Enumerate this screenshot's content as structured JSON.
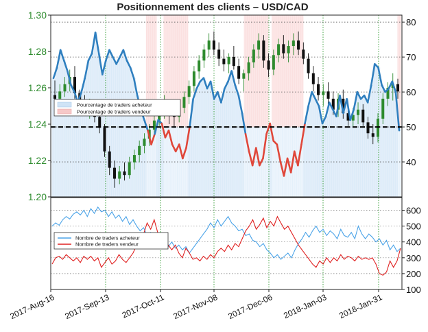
{
  "chart_data": {
    "type": "line",
    "title": "Positionnement des clients – USD/CAD",
    "colors": {
      "price_axis": "#2e8b2e",
      "long_line": "#2f7fbf",
      "short_line": "#e0473a",
      "long_fill": "#d6e8f7",
      "short_fill": "#fbdede",
      "up_candle": "#2e8b2e",
      "down_candle": "#111111",
      "long_count": "#4aa3e8",
      "short_count": "#e02020",
      "grid_vertical": "#2e9a2e"
    },
    "x_tick_labels": [
      "2017-Aug-16",
      "2017-Sep-13",
      "2017-Oct-11",
      "2017-Nov-08",
      "2017-Dec-06",
      "2018-Jan-03",
      "2018-Jan-31"
    ],
    "panels": [
      {
        "name": "positioning",
        "price_axis": {
          "side": "left",
          "range": [
            1.2,
            1.3
          ],
          "ticks": [
            "1.30",
            "1.28",
            "1.26",
            "1.24",
            "1.22",
            "1.20"
          ]
        },
        "pct_axis": {
          "side": "right",
          "range": [
            30,
            82
          ],
          "ticks": [
            "80",
            "70",
            "60",
            "50",
            "40"
          ]
        },
        "reference_line": 50,
        "legend": {
          "placement": "left-middle",
          "entries": [
            "Pourcentage de traders acheteur",
            "Pourcentage de traders vendeur"
          ]
        },
        "price_ohlc": [
          [
            1.256,
            1.264,
            1.249,
            1.254
          ],
          [
            1.254,
            1.262,
            1.25,
            1.258
          ],
          [
            1.258,
            1.266,
            1.255,
            1.262
          ],
          [
            1.262,
            1.27,
            1.258,
            1.266
          ],
          [
            1.266,
            1.272,
            1.254,
            1.257
          ],
          [
            1.257,
            1.259,
            1.248,
            1.251
          ],
          [
            1.251,
            1.256,
            1.245,
            1.249
          ],
          [
            1.249,
            1.254,
            1.243,
            1.25
          ],
          [
            1.25,
            1.253,
            1.241,
            1.244
          ],
          [
            1.244,
            1.249,
            1.235,
            1.238
          ],
          [
            1.238,
            1.24,
            1.222,
            1.225
          ],
          [
            1.225,
            1.228,
            1.212,
            1.216
          ],
          [
            1.216,
            1.22,
            1.205,
            1.21
          ],
          [
            1.21,
            1.217,
            1.207,
            1.214
          ],
          [
            1.214,
            1.219,
            1.209,
            1.212
          ],
          [
            1.212,
            1.222,
            1.21,
            1.219
          ],
          [
            1.219,
            1.226,
            1.215,
            1.223
          ],
          [
            1.223,
            1.231,
            1.219,
            1.228
          ],
          [
            1.228,
            1.235,
            1.224,
            1.232
          ],
          [
            1.232,
            1.24,
            1.228,
            1.237
          ],
          [
            1.237,
            1.245,
            1.233,
            1.242
          ],
          [
            1.242,
            1.252,
            1.239,
            1.249
          ],
          [
            1.249,
            1.256,
            1.243,
            1.251
          ],
          [
            1.251,
            1.253,
            1.24,
            1.246
          ],
          [
            1.246,
            1.25,
            1.238,
            1.244
          ],
          [
            1.244,
            1.252,
            1.241,
            1.249
          ],
          [
            1.249,
            1.258,
            1.246,
            1.255
          ],
          [
            1.255,
            1.264,
            1.251,
            1.261
          ],
          [
            1.261,
            1.272,
            1.258,
            1.269
          ],
          [
            1.269,
            1.278,
            1.265,
            1.275
          ],
          [
            1.275,
            1.284,
            1.271,
            1.281
          ],
          [
            1.281,
            1.29,
            1.277,
            1.286
          ],
          [
            1.286,
            1.291,
            1.278,
            1.281
          ],
          [
            1.281,
            1.285,
            1.272,
            1.276
          ],
          [
            1.276,
            1.281,
            1.269,
            1.273
          ],
          [
            1.273,
            1.279,
            1.268,
            1.277
          ],
          [
            1.277,
            1.283,
            1.27,
            1.272
          ],
          [
            1.272,
            1.276,
            1.262,
            1.265
          ],
          [
            1.265,
            1.27,
            1.258,
            1.268
          ],
          [
            1.268,
            1.277,
            1.264,
            1.274
          ],
          [
            1.274,
            1.284,
            1.271,
            1.281
          ],
          [
            1.281,
            1.29,
            1.276,
            1.286
          ],
          [
            1.286,
            1.289,
            1.271,
            1.275
          ],
          [
            1.275,
            1.279,
            1.266,
            1.27
          ],
          [
            1.27,
            1.281,
            1.267,
            1.278
          ],
          [
            1.278,
            1.287,
            1.274,
            1.284
          ],
          [
            1.284,
            1.289,
            1.276,
            1.279
          ],
          [
            1.279,
            1.286,
            1.274,
            1.283
          ],
          [
            1.283,
            1.29,
            1.278,
            1.286
          ],
          [
            1.286,
            1.291,
            1.278,
            1.281
          ],
          [
            1.281,
            1.285,
            1.273,
            1.276
          ],
          [
            1.276,
            1.279,
            1.265,
            1.268
          ],
          [
            1.268,
            1.272,
            1.258,
            1.262
          ],
          [
            1.262,
            1.266,
            1.253,
            1.256
          ],
          [
            1.256,
            1.262,
            1.25,
            1.258
          ],
          [
            1.258,
            1.263,
            1.251,
            1.254
          ],
          [
            1.254,
            1.258,
            1.245,
            1.248
          ],
          [
            1.248,
            1.257,
            1.244,
            1.254
          ],
          [
            1.254,
            1.259,
            1.243,
            1.246
          ],
          [
            1.246,
            1.251,
            1.239,
            1.242
          ],
          [
            1.242,
            1.249,
            1.238,
            1.245
          ],
          [
            1.245,
            1.252,
            1.24,
            1.248
          ],
          [
            1.248,
            1.251,
            1.239,
            1.241
          ],
          [
            1.241,
            1.244,
            1.232,
            1.235
          ],
          [
            1.235,
            1.24,
            1.229,
            1.233
          ],
          [
            1.233,
            1.246,
            1.23,
            1.243
          ],
          [
            1.243,
            1.257,
            1.24,
            1.254
          ],
          [
            1.254,
            1.263,
            1.25,
            1.26
          ],
          [
            1.26,
            1.268,
            1.253,
            1.262
          ],
          [
            1.262,
            1.265,
            1.254,
            1.258
          ]
        ],
        "long_pct": [
          64,
          67,
          72,
          69,
          66,
          62,
          60,
          57,
          60,
          64,
          69,
          71,
          77,
          71,
          65,
          69,
          72,
          70,
          68,
          70,
          72,
          69,
          67,
          64,
          59,
          55,
          52,
          49,
          45,
          48,
          52,
          51,
          47,
          49,
          45,
          43,
          45,
          41,
          44,
          50,
          58,
          61,
          63,
          64,
          61,
          63,
          58,
          60,
          57,
          61,
          63,
          66,
          62,
          59,
          54,
          48,
          43,
          39,
          44,
          39,
          41,
          48,
          51,
          46,
          45,
          40,
          36,
          41,
          37,
          43,
          39,
          45,
          51,
          56,
          60,
          58,
          56,
          51,
          53,
          57,
          55,
          53,
          59,
          54,
          58,
          52,
          55,
          60,
          58,
          59,
          57,
          62,
          68,
          67,
          62,
          60,
          61,
          63,
          60,
          49
        ]
      },
      {
        "name": "trader-counts",
        "count_axis": {
          "side": "right",
          "range": [
            100,
            680
          ],
          "ticks": [
            "600",
            "500",
            "400",
            "300",
            "200",
            "100"
          ]
        },
        "legend": {
          "placement": "left-middle",
          "entries": [
            "Nombre de traders acheteur",
            "Nombre de traders vendeur"
          ]
        },
        "series": [
          {
            "name": "Nombre de traders acheteur",
            "values": [
              500,
              520,
              505,
              540,
              560,
              545,
              575,
              590,
              570,
              600,
              560,
              610,
              580,
              620,
              590,
              600,
              560,
              590,
              550,
              570,
              530,
              560,
              510,
              540,
              500,
              470,
              490,
              440,
              460,
              410,
              430,
              390,
              410,
              370,
              400,
              360,
              380,
              350,
              370,
              330,
              360,
              390,
              420,
              450,
              480,
              520,
              490,
              540,
              500,
              530,
              560,
              520,
              500,
              470,
              480,
              440,
              450,
              410,
              400,
              370,
              390,
              350,
              330,
              300,
              320,
              290,
              310,
              330,
              300,
              350,
              390,
              420,
              460,
              430,
              470,
              500,
              460,
              480,
              440,
              470,
              450,
              420,
              480,
              440,
              430,
              460,
              420,
              500,
              450,
              420,
              450,
              430,
              400,
              420,
              380,
              410,
              350,
              380,
              340,
              360
            ]
          },
          {
            "name": "Nombre de traders vendeur",
            "values": [
              260,
              300,
              310,
              290,
              320,
              300,
              280,
              300,
              270,
              310,
              290,
              310,
              280,
              300,
              240,
              270,
              300,
              260,
              280,
              320,
              290,
              270,
              300,
              330,
              380,
              400,
              450,
              520,
              480,
              540,
              460,
              420,
              400,
              380,
              350,
              380,
              330,
              300,
              360,
              330,
              290,
              300,
              280,
              310,
              290,
              320,
              300,
              340,
              360,
              340,
              380,
              350,
              390,
              370,
              420,
              470,
              500,
              540,
              480,
              510,
              550,
              490,
              530,
              500,
              560,
              520,
              480,
              500,
              460,
              420,
              380,
              350,
              320,
              290,
              260,
              240,
              280,
              260,
              300,
              270,
              300,
              280,
              320,
              290,
              310,
              300,
              280,
              310,
              290,
              300,
              290,
              300,
              260,
              200,
              190,
              210,
              280,
              240,
              280,
              360
            ]
          }
        ]
      }
    ]
  }
}
